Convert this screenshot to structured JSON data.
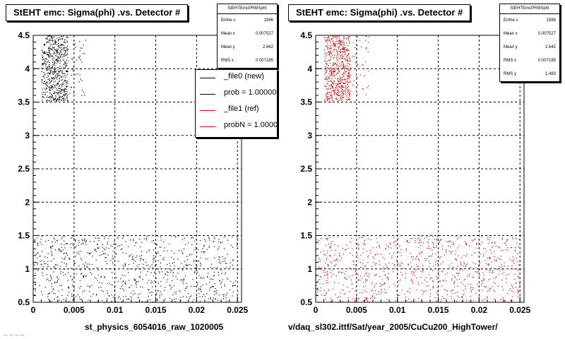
{
  "left": {
    "title": "StEHT emc: Sigma(phi) .vs. Detector #",
    "xlabel": "st_physics_6054016_raw_1020005"
  },
  "right": {
    "title": "StEHT emc: Sigma(phi) .vs. Detector #",
    "xlabel": "v/daq_sl302.ittf/Sat/year_2005/CuCu200_HighTower/"
  },
  "stats_left": {
    "title": "StEHTEmcPRMSphI",
    "rows": [
      {
        "label": "Entrie s",
        "value": "1566"
      },
      {
        "label": "Mean  x",
        "value": "0.007527"
      },
      {
        "label": "Mean y",
        "value": "2.642"
      },
      {
        "label": "RMS  x",
        "value": "0.007185"
      }
    ]
  },
  "stats_right": {
    "title": "StEHTEmcPRMSphI",
    "rows": [
      {
        "label": "Entrie s",
        "value": "1566"
      },
      {
        "label": "Mean  x",
        "value": "0.007527"
      },
      {
        "label": "Mean y",
        "value": "2.642"
      },
      {
        "label": "RMS  x",
        "value": "0.007185"
      },
      {
        "label": "RMS  y",
        "value": "1.483"
      }
    ]
  },
  "legend": [
    {
      "label": "_file0 (new)",
      "color": "#000000"
    },
    {
      "label": "prob = 1.000000",
      "color": "#000000"
    },
    {
      "label": "_file1 (ref)",
      "color": "#cc0000"
    },
    {
      "label": "probN = 1.000000",
      "color": "#cc0000"
    }
  ],
  "bottom_stamp": "... ... ... ...",
  "chart_data": [
    {
      "type": "scatter",
      "title": "StEHT emc: Sigma(phi) .vs. Detector #",
      "xlabel": "st_physics_6054016_raw_1020005",
      "ylabel": "",
      "xlim": [
        0,
        0.0255
      ],
      "ylim": [
        0.5,
        4.5
      ],
      "grid": true,
      "xticks": [
        "0",
        "0.005",
        "0.01",
        "0.015",
        "0.02",
        "0.025"
      ],
      "yticks": [
        "0.5",
        "1",
        "1.5",
        "2",
        "2.5",
        "3",
        "3.5",
        "4",
        "4.5"
      ],
      "color": "#000000",
      "clusters": [
        {
          "x_range": [
            0.001,
            0.0042
          ],
          "y_range": [
            3.52,
            4.5
          ],
          "count": 600
        },
        {
          "x_range": [
            0.0042,
            0.0065
          ],
          "y_range": [
            3.6,
            4.5
          ],
          "count": 40
        },
        {
          "x_range": [
            0.0,
            0.025
          ],
          "y_range": [
            0.5,
            1.5
          ],
          "count": 900
        }
      ]
    },
    {
      "type": "scatter",
      "title": "StEHT emc: Sigma(phi) .vs. Detector #",
      "xlabel": "v/daq_sl302.ittf/Sat/year_2005/CuCu200_HighTower/",
      "ylabel": "",
      "xlim": [
        0,
        0.0255
      ],
      "ylim": [
        0.5,
        4.5
      ],
      "grid": true,
      "xticks": [
        "0",
        "0.005",
        "0.01",
        "0.015",
        "0.02",
        "0.025"
      ],
      "yticks": [
        "0.5",
        "1",
        "1.5",
        "2",
        "2.5",
        "3",
        "3.5",
        "4",
        "4.5"
      ],
      "color": "#cc0000",
      "clusters": [
        {
          "x_range": [
            0.001,
            0.0042
          ],
          "y_range": [
            3.52,
            4.5
          ],
          "count": 600
        },
        {
          "x_range": [
            0.0042,
            0.0065
          ],
          "y_range": [
            3.6,
            4.5
          ],
          "count": 40
        },
        {
          "x_range": [
            0.0,
            0.025
          ],
          "y_range": [
            0.5,
            1.5
          ],
          "count": 900
        }
      ]
    }
  ]
}
